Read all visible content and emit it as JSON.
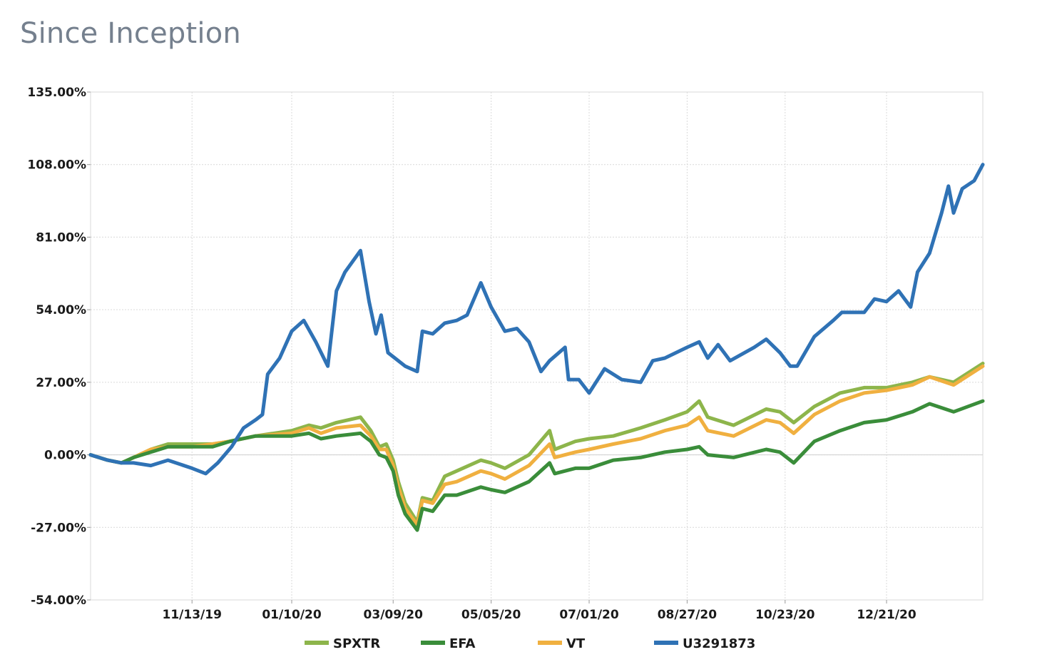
{
  "page": {
    "title": "Since Inception"
  },
  "chart_data": {
    "type": "line",
    "title": "Since Inception",
    "xlabel": "",
    "ylabel": "",
    "y_unit": "%",
    "ylim": [
      -54,
      135
    ],
    "y_ticks": [
      {
        "value": 135,
        "label": "135.00%"
      },
      {
        "value": 108,
        "label": "108.00%"
      },
      {
        "value": 81,
        "label": "81.00%"
      },
      {
        "value": 54,
        "label": "54.00%"
      },
      {
        "value": 27,
        "label": "27.00%"
      },
      {
        "value": 0,
        "label": "0.00%"
      },
      {
        "value": -27,
        "label": "-27.00%"
      },
      {
        "value": -54,
        "label": "-54.00%"
      }
    ],
    "x_start": "2019-09-15",
    "x_end": "2021-02-15",
    "x_ticks": [
      {
        "date": "2019-11-13",
        "label": "11/13/19"
      },
      {
        "date": "2020-01-10",
        "label": "01/10/20"
      },
      {
        "date": "2020-03-09",
        "label": "03/09/20"
      },
      {
        "date": "2020-05-05",
        "label": "05/05/20"
      },
      {
        "date": "2020-07-01",
        "label": "07/01/20"
      },
      {
        "date": "2020-08-27",
        "label": "08/27/20"
      },
      {
        "date": "2020-10-23",
        "label": "10/23/20"
      },
      {
        "date": "2020-12-21",
        "label": "12/21/20"
      }
    ],
    "grid": true,
    "legend_position": "bottom",
    "series": [
      {
        "name": "SPXTR",
        "color": "#8db54b",
        "points": [
          [
            "2019-09-15",
            0
          ],
          [
            "2019-09-25",
            -2
          ],
          [
            "2019-10-03",
            -3
          ],
          [
            "2019-10-10",
            -1
          ],
          [
            "2019-10-20",
            2
          ],
          [
            "2019-10-30",
            4
          ],
          [
            "2019-11-13",
            4
          ],
          [
            "2019-11-25",
            4
          ],
          [
            "2019-12-05",
            5
          ],
          [
            "2019-12-20",
            7
          ],
          [
            "2020-01-10",
            9
          ],
          [
            "2020-01-20",
            11
          ],
          [
            "2020-01-27",
            10
          ],
          [
            "2020-02-05",
            12
          ],
          [
            "2020-02-19",
            14
          ],
          [
            "2020-02-25",
            9
          ],
          [
            "2020-03-01",
            3
          ],
          [
            "2020-03-05",
            4
          ],
          [
            "2020-03-09",
            -2
          ],
          [
            "2020-03-12",
            -10
          ],
          [
            "2020-03-16",
            -18
          ],
          [
            "2020-03-23",
            -25
          ],
          [
            "2020-03-26",
            -16
          ],
          [
            "2020-04-01",
            -17
          ],
          [
            "2020-04-08",
            -8
          ],
          [
            "2020-04-15",
            -6
          ],
          [
            "2020-04-29",
            -2
          ],
          [
            "2020-05-05",
            -3
          ],
          [
            "2020-05-13",
            -5
          ],
          [
            "2020-05-27",
            0
          ],
          [
            "2020-06-08",
            9
          ],
          [
            "2020-06-11",
            2
          ],
          [
            "2020-06-23",
            5
          ],
          [
            "2020-07-01",
            6
          ],
          [
            "2020-07-15",
            7
          ],
          [
            "2020-07-31",
            10
          ],
          [
            "2020-08-14",
            13
          ],
          [
            "2020-08-27",
            16
          ],
          [
            "2020-09-03",
            20
          ],
          [
            "2020-09-08",
            14
          ],
          [
            "2020-09-23",
            11
          ],
          [
            "2020-10-12",
            17
          ],
          [
            "2020-10-20",
            16
          ],
          [
            "2020-10-28",
            12
          ],
          [
            "2020-11-09",
            18
          ],
          [
            "2020-11-24",
            23
          ],
          [
            "2020-12-08",
            25
          ],
          [
            "2020-12-21",
            25
          ],
          [
            "2021-01-05",
            27
          ],
          [
            "2021-01-15",
            29
          ],
          [
            "2021-01-29",
            27
          ],
          [
            "2021-02-15",
            34
          ]
        ]
      },
      {
        "name": "EFA",
        "color": "#3a8d3a",
        "points": [
          [
            "2019-09-15",
            0
          ],
          [
            "2019-09-25",
            -2
          ],
          [
            "2019-10-03",
            -3
          ],
          [
            "2019-10-10",
            -1
          ],
          [
            "2019-10-20",
            1
          ],
          [
            "2019-10-30",
            3
          ],
          [
            "2019-11-13",
            3
          ],
          [
            "2019-11-25",
            3
          ],
          [
            "2019-12-05",
            5
          ],
          [
            "2019-12-20",
            7
          ],
          [
            "2020-01-10",
            7
          ],
          [
            "2020-01-20",
            8
          ],
          [
            "2020-01-27",
            6
          ],
          [
            "2020-02-05",
            7
          ],
          [
            "2020-02-19",
            8
          ],
          [
            "2020-02-25",
            5
          ],
          [
            "2020-03-01",
            0
          ],
          [
            "2020-03-05",
            -1
          ],
          [
            "2020-03-09",
            -6
          ],
          [
            "2020-03-12",
            -15
          ],
          [
            "2020-03-16",
            -22
          ],
          [
            "2020-03-23",
            -28
          ],
          [
            "2020-03-26",
            -20
          ],
          [
            "2020-04-01",
            -21
          ],
          [
            "2020-04-08",
            -15
          ],
          [
            "2020-04-15",
            -15
          ],
          [
            "2020-04-29",
            -12
          ],
          [
            "2020-05-05",
            -13
          ],
          [
            "2020-05-13",
            -14
          ],
          [
            "2020-05-27",
            -10
          ],
          [
            "2020-06-08",
            -3
          ],
          [
            "2020-06-11",
            -7
          ],
          [
            "2020-06-23",
            -5
          ],
          [
            "2020-07-01",
            -5
          ],
          [
            "2020-07-15",
            -2
          ],
          [
            "2020-07-31",
            -1
          ],
          [
            "2020-08-14",
            1
          ],
          [
            "2020-08-27",
            2
          ],
          [
            "2020-09-03",
            3
          ],
          [
            "2020-09-08",
            0
          ],
          [
            "2020-09-23",
            -1
          ],
          [
            "2020-10-12",
            2
          ],
          [
            "2020-10-20",
            1
          ],
          [
            "2020-10-28",
            -3
          ],
          [
            "2020-11-09",
            5
          ],
          [
            "2020-11-24",
            9
          ],
          [
            "2020-12-08",
            12
          ],
          [
            "2020-12-21",
            13
          ],
          [
            "2021-01-05",
            16
          ],
          [
            "2021-01-15",
            19
          ],
          [
            "2021-01-29",
            16
          ],
          [
            "2021-02-15",
            20
          ]
        ]
      },
      {
        "name": "VT",
        "color": "#f0b040",
        "points": [
          [
            "2019-09-15",
            0
          ],
          [
            "2019-09-25",
            -2
          ],
          [
            "2019-10-03",
            -3
          ],
          [
            "2019-10-10",
            -1
          ],
          [
            "2019-10-20",
            2
          ],
          [
            "2019-10-30",
            3
          ],
          [
            "2019-11-13",
            3
          ],
          [
            "2019-11-25",
            4
          ],
          [
            "2019-12-05",
            5
          ],
          [
            "2019-12-20",
            7
          ],
          [
            "2020-01-10",
            8
          ],
          [
            "2020-01-20",
            10
          ],
          [
            "2020-01-27",
            8
          ],
          [
            "2020-02-05",
            10
          ],
          [
            "2020-02-19",
            11
          ],
          [
            "2020-02-25",
            7
          ],
          [
            "2020-03-01",
            2
          ],
          [
            "2020-03-05",
            2
          ],
          [
            "2020-03-09",
            -4
          ],
          [
            "2020-03-12",
            -12
          ],
          [
            "2020-03-16",
            -20
          ],
          [
            "2020-03-23",
            -26
          ],
          [
            "2020-03-26",
            -17
          ],
          [
            "2020-04-01",
            -18
          ],
          [
            "2020-04-08",
            -11
          ],
          [
            "2020-04-15",
            -10
          ],
          [
            "2020-04-29",
            -6
          ],
          [
            "2020-05-05",
            -7
          ],
          [
            "2020-05-13",
            -9
          ],
          [
            "2020-05-27",
            -4
          ],
          [
            "2020-06-08",
            4
          ],
          [
            "2020-06-11",
            -1
          ],
          [
            "2020-06-23",
            1
          ],
          [
            "2020-07-01",
            2
          ],
          [
            "2020-07-15",
            4
          ],
          [
            "2020-07-31",
            6
          ],
          [
            "2020-08-14",
            9
          ],
          [
            "2020-08-27",
            11
          ],
          [
            "2020-09-03",
            14
          ],
          [
            "2020-09-08",
            9
          ],
          [
            "2020-09-23",
            7
          ],
          [
            "2020-10-12",
            13
          ],
          [
            "2020-10-20",
            12
          ],
          [
            "2020-10-28",
            8
          ],
          [
            "2020-11-09",
            15
          ],
          [
            "2020-11-24",
            20
          ],
          [
            "2020-12-08",
            23
          ],
          [
            "2020-12-21",
            24
          ],
          [
            "2021-01-05",
            26
          ],
          [
            "2021-01-15",
            29
          ],
          [
            "2021-01-29",
            26
          ],
          [
            "2021-02-15",
            33
          ]
        ]
      },
      {
        "name": "U3291873",
        "color": "#2f72b5",
        "points": [
          [
            "2019-09-15",
            0
          ],
          [
            "2019-09-25",
            -2
          ],
          [
            "2019-10-03",
            -3
          ],
          [
            "2019-10-10",
            -3
          ],
          [
            "2019-10-20",
            -4
          ],
          [
            "2019-10-30",
            -2
          ],
          [
            "2019-11-13",
            -5
          ],
          [
            "2019-11-21",
            -7
          ],
          [
            "2019-11-28",
            -3
          ],
          [
            "2019-12-06",
            3
          ],
          [
            "2019-12-13",
            10
          ],
          [
            "2019-12-20",
            13
          ],
          [
            "2019-12-24",
            15
          ],
          [
            "2019-12-27",
            30
          ],
          [
            "2020-01-03",
            36
          ],
          [
            "2020-01-10",
            46
          ],
          [
            "2020-01-17",
            50
          ],
          [
            "2020-01-24",
            42
          ],
          [
            "2020-01-31",
            33
          ],
          [
            "2020-02-05",
            61
          ],
          [
            "2020-02-10",
            68
          ],
          [
            "2020-02-19",
            76
          ],
          [
            "2020-02-24",
            57
          ],
          [
            "2020-02-28",
            45
          ],
          [
            "2020-03-02",
            52
          ],
          [
            "2020-03-06",
            38
          ],
          [
            "2020-03-16",
            33
          ],
          [
            "2020-03-23",
            31
          ],
          [
            "2020-03-26",
            46
          ],
          [
            "2020-04-01",
            45
          ],
          [
            "2020-04-08",
            49
          ],
          [
            "2020-04-15",
            50
          ],
          [
            "2020-04-21",
            52
          ],
          [
            "2020-04-29",
            64
          ],
          [
            "2020-05-05",
            55
          ],
          [
            "2020-05-13",
            46
          ],
          [
            "2020-05-20",
            47
          ],
          [
            "2020-05-27",
            42
          ],
          [
            "2020-06-03",
            31
          ],
          [
            "2020-06-08",
            35
          ],
          [
            "2020-06-17",
            40
          ],
          [
            "2020-06-19",
            28
          ],
          [
            "2020-06-25",
            28
          ],
          [
            "2020-07-01",
            23
          ],
          [
            "2020-07-10",
            32
          ],
          [
            "2020-07-20",
            28
          ],
          [
            "2020-07-31",
            27
          ],
          [
            "2020-08-07",
            35
          ],
          [
            "2020-08-14",
            36
          ],
          [
            "2020-08-27",
            40
          ],
          [
            "2020-09-03",
            42
          ],
          [
            "2020-09-08",
            36
          ],
          [
            "2020-09-14",
            41
          ],
          [
            "2020-09-21",
            35
          ],
          [
            "2020-10-05",
            40
          ],
          [
            "2020-10-12",
            43
          ],
          [
            "2020-10-20",
            38
          ],
          [
            "2020-10-26",
            33
          ],
          [
            "2020-10-30",
            33
          ],
          [
            "2020-11-09",
            44
          ],
          [
            "2020-11-20",
            50
          ],
          [
            "2020-11-25",
            53
          ],
          [
            "2020-12-08",
            53
          ],
          [
            "2020-12-14",
            58
          ],
          [
            "2020-12-21",
            57
          ],
          [
            "2020-12-28",
            61
          ],
          [
            "2021-01-04",
            55
          ],
          [
            "2021-01-08",
            68
          ],
          [
            "2021-01-15",
            75
          ],
          [
            "2021-01-22",
            90
          ],
          [
            "2021-01-26",
            100
          ],
          [
            "2021-01-29",
            90
          ],
          [
            "2021-02-03",
            99
          ],
          [
            "2021-02-10",
            102
          ],
          [
            "2021-02-15",
            108
          ]
        ]
      }
    ]
  }
}
